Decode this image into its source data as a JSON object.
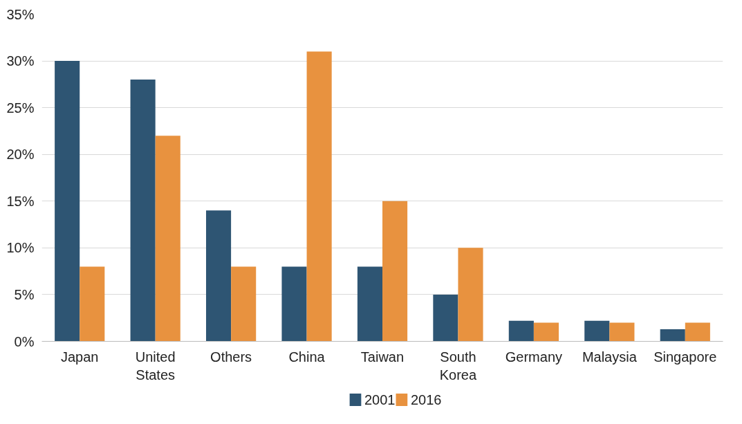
{
  "chart_data": {
    "type": "bar",
    "categories": [
      "Japan",
      "United States",
      "Others",
      "China",
      "Taiwan",
      "South Korea",
      "Germany",
      "Malaysia",
      "Singapore"
    ],
    "series": [
      {
        "name": "2001",
        "color": "#2e5573",
        "values": [
          30,
          28,
          14,
          8,
          8,
          5,
          2.2,
          2.2,
          1.3
        ]
      },
      {
        "name": "2016",
        "color": "#e8923f",
        "values": [
          8,
          22,
          8,
          31,
          15,
          10,
          2,
          2,
          2
        ]
      }
    ],
    "ylim": [
      0,
      35
    ],
    "yticks": [
      {
        "value": 0,
        "label": "0%"
      },
      {
        "value": 5,
        "label": "5%"
      },
      {
        "value": 10,
        "label": "10%"
      },
      {
        "value": 15,
        "label": "15%"
      },
      {
        "value": 20,
        "label": "20%"
      },
      {
        "value": 25,
        "label": "25%"
      },
      {
        "value": 30,
        "label": "30%"
      },
      {
        "value": 35,
        "label": "35%"
      }
    ],
    "grid": "y",
    "legend": "bottom"
  }
}
